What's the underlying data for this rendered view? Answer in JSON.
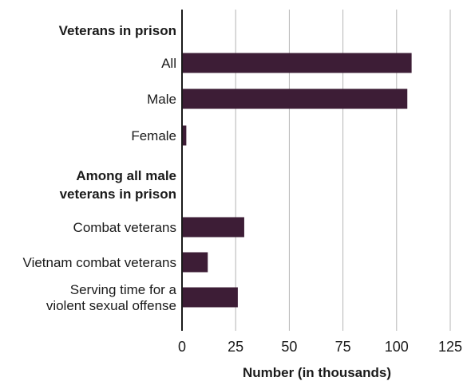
{
  "chart_data": {
    "type": "bar",
    "orientation": "horizontal",
    "xlabel": "Number (in thousands)",
    "xlim": [
      0,
      125
    ],
    "xticks": [
      "0",
      "25",
      "50",
      "75",
      "100",
      "125"
    ],
    "grid": true,
    "bar_color": "#3d1d36",
    "groups": [
      {
        "heading": "Veterans in prison",
        "categories": [
          "All",
          "Male",
          "Female"
        ],
        "values": [
          107,
          105,
          2
        ]
      },
      {
        "heading": "Among all male veterans in prison",
        "heading_lines": [
          "Among all male",
          "veterans in prison"
        ],
        "categories": [
          "Combat veterans",
          "Vietnam combat veterans",
          "Serving time for a violent sexual offense"
        ],
        "category_lines": [
          [
            "Combat veterans"
          ],
          [
            "Vietnam combat veterans"
          ],
          [
            "Serving time for a",
            "violent sexual offense"
          ]
        ],
        "values": [
          29,
          12,
          26
        ]
      }
    ]
  }
}
